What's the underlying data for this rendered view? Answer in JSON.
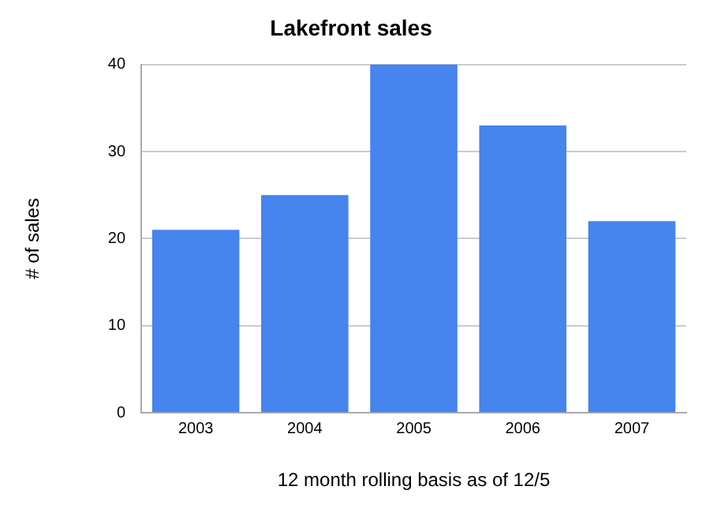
{
  "chart_data": {
    "type": "bar",
    "title": "Lakefront sales",
    "xlabel": "12 month rolling basis as of 12/5",
    "ylabel": "# of sales",
    "categories": [
      "2003",
      "2004",
      "2005",
      "2006",
      "2007"
    ],
    "values": [
      21,
      25,
      40,
      33,
      22
    ],
    "color": "#4684ee",
    "ylim": [
      0,
      40
    ],
    "yticks": [
      0,
      10,
      20,
      30,
      40
    ],
    "grid": "y",
    "legend": false
  }
}
